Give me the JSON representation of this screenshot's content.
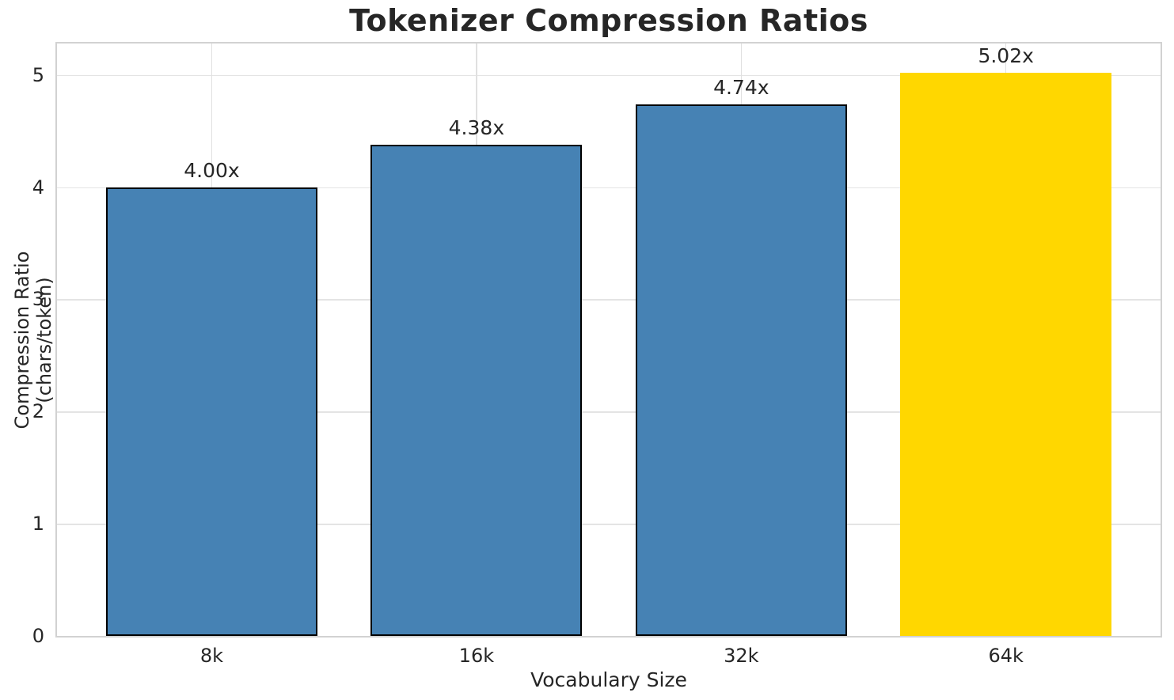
{
  "chart_data": {
    "type": "bar",
    "title": "Tokenizer Compression Ratios",
    "xlabel": "Vocabulary Size",
    "ylabel": "Compression Ratio (chars/token)",
    "categories": [
      "8k",
      "16k",
      "32k",
      "64k"
    ],
    "values": [
      4.0,
      4.38,
      4.74,
      5.02
    ],
    "bar_labels": [
      "4.00x",
      "4.38x",
      "4.74x",
      "5.02x"
    ],
    "bar_colors": [
      "#4682B4",
      "#4682B4",
      "#4682B4",
      "#FFD700"
    ],
    "bar_edge_colors": [
      "#000000",
      "#000000",
      "#000000",
      "none"
    ],
    "ylim": [
      0,
      5.28
    ],
    "yticks": [
      0,
      1,
      2,
      3,
      4,
      5
    ],
    "grid": "on",
    "legend": "none",
    "background_color": "#ffffff",
    "gridline_color": "#e4e4e4",
    "spine_color": "#d2d2d2",
    "text_color": "#262626"
  }
}
